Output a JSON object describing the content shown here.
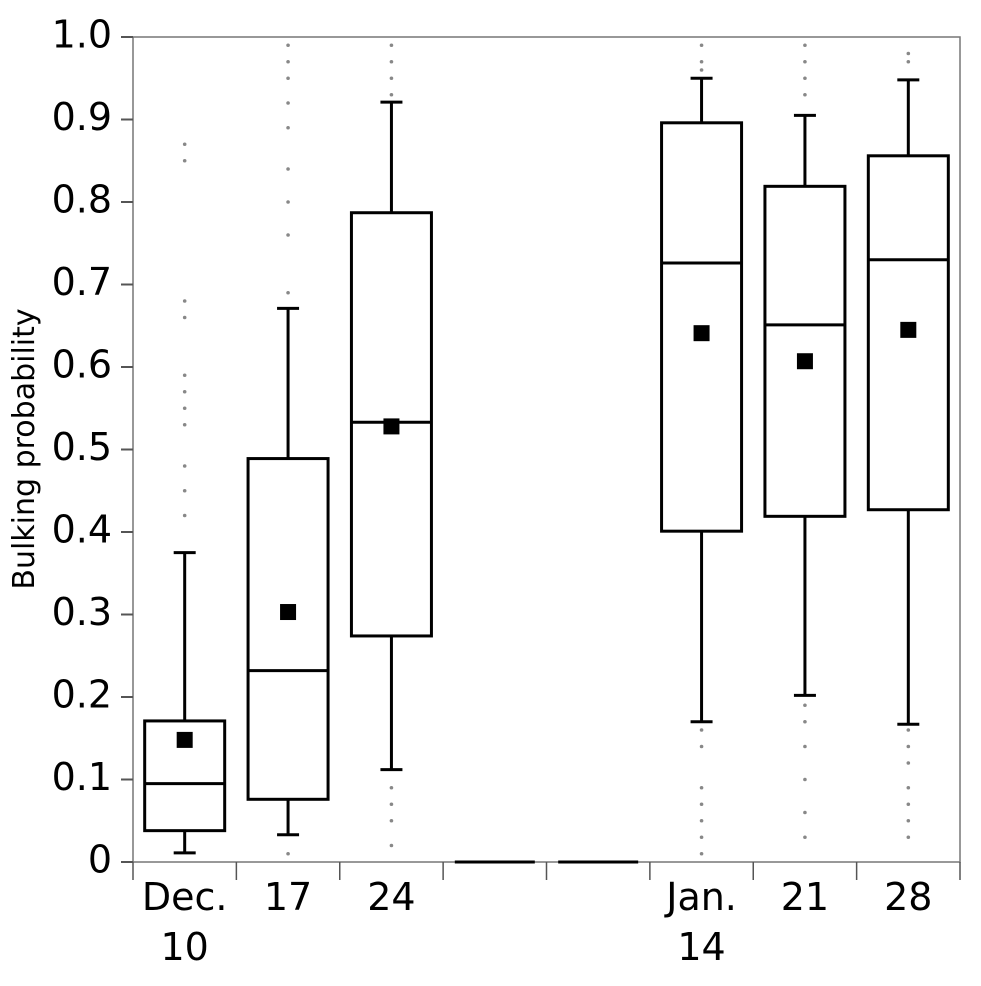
{
  "chart_data": {
    "type": "box",
    "y_label": "Bulking probability",
    "categories": [
      "Dec. 10",
      "17",
      "24",
      null,
      null,
      "Jan. 14",
      "21",
      "28"
    ],
    "color": "#000000",
    "ylim": [
      0,
      1
    ],
    "yticks": [
      0,
      0.1,
      0.2,
      0.3,
      0.4,
      0.5,
      0.6,
      0.7,
      0.8,
      0.9,
      {
        "value": 1,
        "label": "1.0"
      }
    ],
    "boxes": [
      {
        "low": 0.011,
        "q1": 0.038,
        "median": 0.095,
        "q3": 0.171,
        "high": 0.375,
        "mean": 0.148,
        "outliers": [
          0.87,
          0.85,
          0.68,
          0.66,
          0.59,
          0.57,
          0.55,
          0.53,
          0.48,
          0.45,
          0.42
        ]
      },
      {
        "low": 0.033,
        "q1": 0.076,
        "median": 0.232,
        "q3": 0.489,
        "high": 0.671,
        "mean": 0.303,
        "outliers": [
          0.99,
          0.97,
          0.95,
          0.92,
          0.89,
          0.84,
          0.8,
          0.76,
          0.69,
          0.01
        ]
      },
      {
        "low": 0.112,
        "q1": 0.274,
        "median": 0.533,
        "q3": 0.787,
        "high": 0.921,
        "mean": 0.528,
        "outliers": [
          0.99,
          0.97,
          0.95,
          0.93,
          0.09,
          0.07,
          0.05,
          0.02
        ]
      },
      {
        "low": 0,
        "q1": 0,
        "median": 0,
        "q3": 0,
        "high": 0,
        "mean": null,
        "outliers": []
      },
      {
        "low": 0,
        "q1": 0,
        "median": 0,
        "q3": 0,
        "high": 0,
        "mean": null,
        "outliers": []
      },
      {
        "low": 0.17,
        "q1": 0.401,
        "median": 0.726,
        "q3": 0.896,
        "high": 0.95,
        "mean": 0.641,
        "outliers": [
          0.99,
          0.97,
          0.96,
          0.16,
          0.14,
          0.09,
          0.07,
          0.05,
          0.03,
          0.01
        ]
      },
      {
        "low": 0.202,
        "q1": 0.419,
        "median": 0.651,
        "q3": 0.819,
        "high": 0.905,
        "mean": 0.607,
        "outliers": [
          0.99,
          0.97,
          0.95,
          0.93,
          0.19,
          0.17,
          0.14,
          0.1,
          0.06,
          0.03
        ]
      },
      {
        "low": 0.167,
        "q1": 0.427,
        "median": 0.73,
        "q3": 0.856,
        "high": 0.948,
        "mean": 0.645,
        "outliers": [
          0.98,
          0.97,
          0.16,
          0.14,
          0.12,
          0.09,
          0.07,
          0.05,
          0.03
        ]
      }
    ]
  }
}
